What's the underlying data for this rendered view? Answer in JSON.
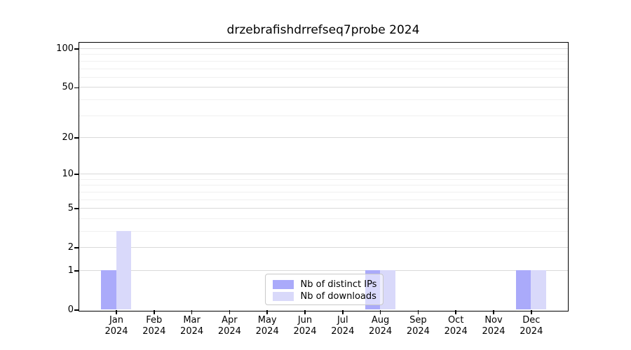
{
  "chart_data": {
    "type": "bar",
    "title": "drzebrafishdrrefseq7probe 2024",
    "categories": [
      "Jan 2024",
      "Feb 2024",
      "Mar 2024",
      "Apr 2024",
      "May 2024",
      "Jun 2024",
      "Jul 2024",
      "Aug 2024",
      "Sep 2024",
      "Oct 2024",
      "Nov 2024",
      "Dec 2024"
    ],
    "series": [
      {
        "name": "Nb of distinct IPs",
        "color": "#aaaafa",
        "values": [
          1,
          0,
          0,
          0,
          0,
          0,
          0,
          1,
          0,
          0,
          0,
          1
        ]
      },
      {
        "name": "Nb of downloads",
        "color": "#d9d9fa",
        "values": [
          3,
          0,
          0,
          0,
          0,
          0,
          0,
          1,
          0,
          0,
          0,
          1
        ]
      }
    ],
    "xlabel": "",
    "ylabel": "",
    "yscale": "log1p",
    "ylim": [
      0,
      112
    ],
    "yticks": [
      0,
      1,
      2,
      5,
      10,
      20,
      50,
      100
    ],
    "gridlines": [
      1,
      2,
      5,
      10,
      20,
      50,
      100
    ],
    "minor_gridlines": [
      3,
      4,
      6,
      7,
      8,
      9,
      30,
      40,
      60,
      70,
      80,
      90
    ],
    "grid": true,
    "legend_position": "lower center, inside plot",
    "colors": {
      "grid_major": "#d9d9d9",
      "grid_minor": "#f0f0f0",
      "spine": "#000000",
      "legend_border": "#c9c9c9"
    }
  }
}
